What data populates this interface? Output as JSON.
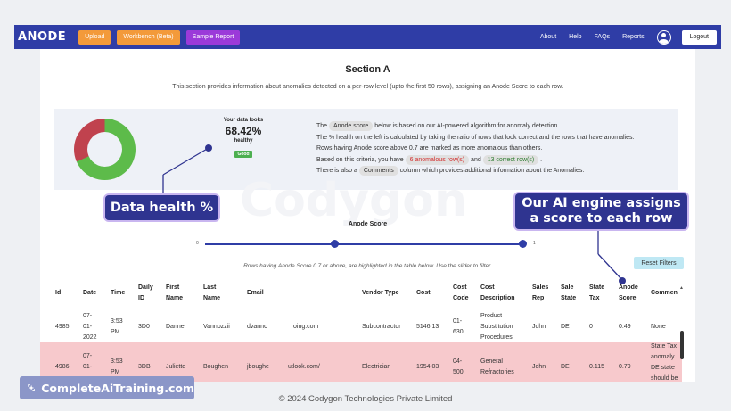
{
  "nav": {
    "logo": "ANODE",
    "buttons": [
      "Upload",
      "Workbench (Beta)",
      "Sample Report"
    ],
    "links": [
      "About",
      "Help",
      "FAQs",
      "Reports"
    ],
    "logout": "Logout"
  },
  "section": {
    "title": "Section A",
    "subtitle": "This section provides information about anomalies detected on a per-row level (upto the first 50 rows), assigning an Anode Score to each row."
  },
  "health": {
    "label": "Your data looks",
    "percent": "68.42%",
    "status": "healthy",
    "badge": "Good",
    "value": 68.42,
    "colors": {
      "healthy": "#5dbb4a",
      "anomalous": "#c0424e"
    }
  },
  "description": {
    "l1_pre": "The",
    "l1_chip": "Anode score",
    "l1_post": "below is based on our AI-powered algorithm for anomaly detection.",
    "l2": "The % health on the left is calculated by taking the ratio of rows that look correct and the rows that have anomalies.",
    "l3": "Rows having Anode score above 0.7 are marked as more anomalous than others.",
    "l4_pre": "Based on this criteria, you have",
    "l4_chip1": "6 anomalous row(s)",
    "l4_mid": "and",
    "l4_chip2": "13 correct row(s)",
    "l4_post": ".",
    "l5_pre": "There is also a",
    "l5_chip": "Comments",
    "l5_post": "column which provides additional information about the Anomalies."
  },
  "watermark": "Codygon",
  "slider": {
    "title": "Anode Score",
    "min": "0",
    "max": "1",
    "note": "Rows having Anode Score 0.7 or above, are highlighted in the table below. Use the slider to filter.",
    "reset": "Reset Filters"
  },
  "table": {
    "headers": [
      [
        "Id"
      ],
      [
        "Date"
      ],
      [
        "Time"
      ],
      [
        "Daily",
        "ID"
      ],
      [
        "First",
        "Name"
      ],
      [
        "Last",
        "Name"
      ],
      [
        "Email"
      ],
      [
        "Vendor Type"
      ],
      [
        "Cost"
      ],
      [
        "Cost",
        "Code"
      ],
      [
        "Cost",
        "Description"
      ],
      [
        "Sales",
        "Rep"
      ],
      [
        "Sale",
        "State"
      ],
      [
        "State",
        "Tax"
      ],
      [
        "Anode",
        "Score"
      ],
      [
        "Commen"
      ]
    ],
    "rows": [
      {
        "id": "4985",
        "date": [
          "07-",
          "01-",
          "2022"
        ],
        "time": [
          "3:53",
          "PM"
        ],
        "daily_id": "3D0",
        "first": "Dannel",
        "last": "Vannozzii",
        "email": "dvanno",
        "email2": "oing.com",
        "vendor": "Subcontractor",
        "cost": "5146.13",
        "cost_code": [
          "01-",
          "630"
        ],
        "cost_desc": [
          "Product",
          "Substitution",
          "Procedures"
        ],
        "rep": "John",
        "state": "DE",
        "tax": "0",
        "score": "0.49",
        "comments": [
          "None"
        ]
      },
      {
        "id": "4986",
        "date": [
          "07-",
          "01-",
          ""
        ],
        "time": [
          "3:53",
          "PM"
        ],
        "daily_id": "3DB",
        "first": "Juliette",
        "last": "Boughen",
        "email": "jboughe",
        "email2": "utlook.com/",
        "vendor": "Electrician",
        "cost": "1954.03",
        "cost_code": [
          "04-",
          "500"
        ],
        "cost_desc": [
          "General",
          "Refractories"
        ],
        "rep": "John",
        "state": "DE",
        "tax": "0.115",
        "score": "0.79",
        "comments": [
          "State Tax",
          "anomaly",
          "DE state",
          "should be"
        ]
      }
    ]
  },
  "callouts": {
    "health": "Data health %",
    "ai": "Our AI engine assigns a score to each row"
  },
  "footer": "© 2024 Codygon Technologies Private Limited",
  "brand": "CompleteAiTraining.com"
}
